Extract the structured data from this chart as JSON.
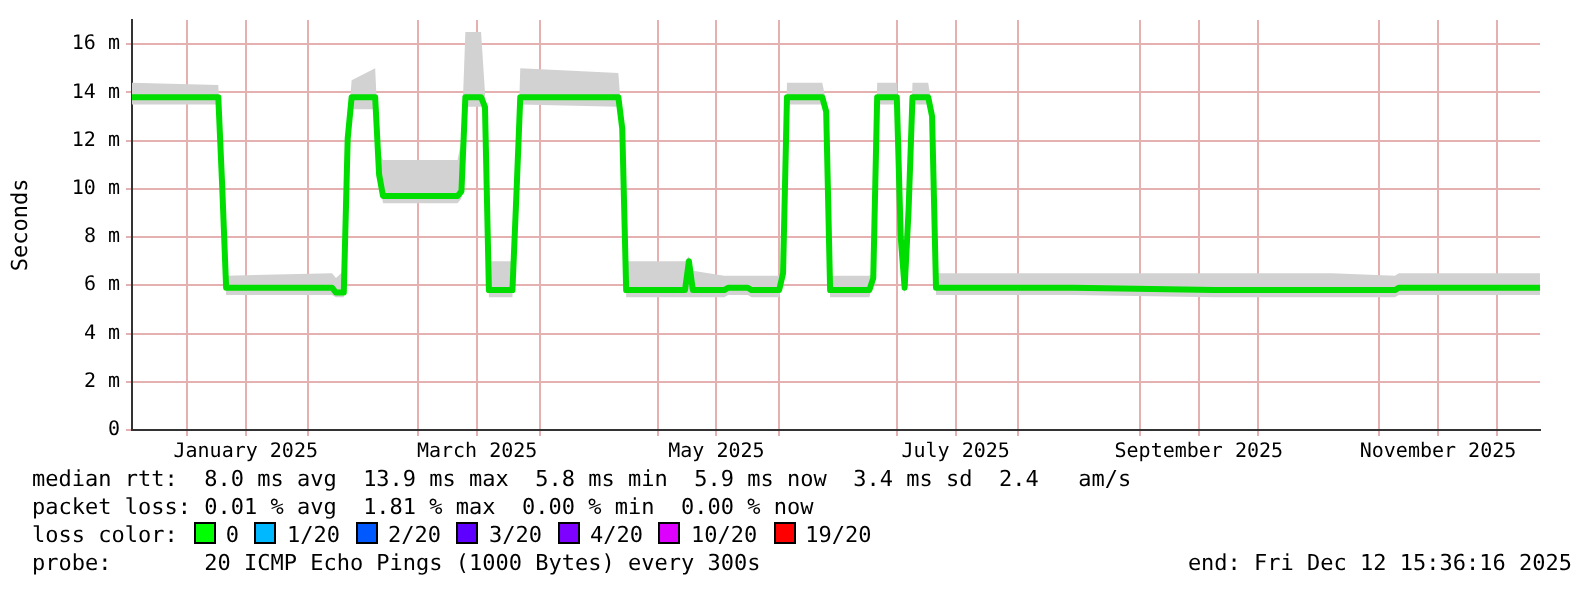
{
  "chart_data": {
    "type": "line",
    "ylabel": "Seconds",
    "legend": false,
    "grid": true,
    "marker": "none",
    "line_style": "solid",
    "xlim": [
      "2024-12-18",
      "2025-12-12"
    ],
    "xticks": [
      {
        "value": "2025-01-01",
        "label": null
      },
      {
        "value": "2025-01-16",
        "label": "January 2025"
      },
      {
        "value": "2025-02-01",
        "label": null
      },
      {
        "value": "2025-03-01",
        "label": null
      },
      {
        "value": "2025-03-16",
        "label": "March 2025"
      },
      {
        "value": "2025-04-01",
        "label": null
      },
      {
        "value": "2025-05-01",
        "label": null
      },
      {
        "value": "2025-05-16",
        "label": "May 2025"
      },
      {
        "value": "2025-06-01",
        "label": null
      },
      {
        "value": "2025-07-01",
        "label": null
      },
      {
        "value": "2025-07-16",
        "label": "July 2025"
      },
      {
        "value": "2025-08-01",
        "label": null
      },
      {
        "value": "2025-09-01",
        "label": null
      },
      {
        "value": "2025-09-16",
        "label": "September 2025"
      },
      {
        "value": "2025-10-01",
        "label": null
      },
      {
        "value": "2025-11-01",
        "label": null
      },
      {
        "value": "2025-11-16",
        "label": "November 2025"
      },
      {
        "value": "2025-12-01",
        "label": null
      }
    ],
    "ylim": [
      0,
      17
    ],
    "yticks": [
      0,
      {
        "value": 2,
        "label": "2 m"
      },
      {
        "value": 4,
        "label": "4 m"
      },
      {
        "value": 6,
        "label": "6 m"
      },
      {
        "value": 8,
        "label": "8 m"
      },
      {
        "value": 10,
        "label": "10 m"
      },
      {
        "value": 12,
        "label": "12 m"
      },
      {
        "value": 14,
        "label": "14 m"
      },
      {
        "value": 16,
        "label": "16 m"
      }
    ],
    "x": [
      "2024-12-18",
      "2025-01-09",
      "2025-01-10",
      "2025-01-11",
      "2025-02-07",
      "2025-02-08",
      "2025-02-10",
      "2025-02-11",
      "2025-02-12",
      "2025-02-18",
      "2025-02-19",
      "2025-02-20",
      "2025-03-11",
      "2025-03-12",
      "2025-03-13",
      "2025-03-17",
      "2025-03-18",
      "2025-03-19",
      "2025-03-25",
      "2025-03-26",
      "2025-03-27",
      "2025-04-21",
      "2025-04-22",
      "2025-04-23",
      "2025-05-08",
      "2025-05-09",
      "2025-05-10",
      "2025-05-18",
      "2025-05-19",
      "2025-05-24",
      "2025-05-25",
      "2025-06-01",
      "2025-06-02",
      "2025-06-03",
      "2025-06-12",
      "2025-06-13",
      "2025-06-14",
      "2025-06-24",
      "2025-06-25",
      "2025-06-26",
      "2025-07-01",
      "2025-07-02",
      "2025-07-03",
      "2025-07-04",
      "2025-07-05",
      "2025-07-09",
      "2025-07-10",
      "2025-07-11",
      "2025-08-15",
      "2025-09-20",
      "2025-10-20",
      "2025-11-05",
      "2025-11-06",
      "2025-12-12"
    ],
    "series": [
      {
        "color": "#00dd00",
        "values": [
          13.8,
          13.8,
          10.1,
          5.9,
          5.9,
          5.7,
          5.7,
          12.1,
          13.8,
          13.8,
          10.6,
          9.7,
          9.7,
          9.9,
          13.8,
          13.8,
          13.4,
          5.8,
          5.8,
          9.7,
          13.8,
          13.8,
          12.5,
          5.8,
          5.8,
          7.0,
          5.8,
          5.8,
          5.9,
          5.9,
          5.8,
          5.8,
          6.5,
          13.8,
          13.8,
          13.2,
          5.8,
          5.8,
          6.3,
          13.8,
          13.8,
          8.0,
          5.9,
          9.1,
          13.8,
          13.8,
          13.0,
          5.9,
          5.9,
          5.8,
          5.8,
          5.8,
          5.9,
          5.9
        ],
        "lower": [
          13.5,
          13.5,
          10.0,
          5.6,
          5.6,
          5.5,
          5.5,
          11.8,
          13.3,
          13.3,
          10.4,
          9.4,
          9.4,
          9.6,
          13.4,
          13.4,
          13.0,
          5.5,
          5.5,
          9.5,
          13.5,
          13.4,
          12.2,
          5.5,
          5.5,
          5.5,
          5.5,
          5.5,
          5.6,
          5.6,
          5.5,
          5.5,
          6.2,
          13.5,
          13.5,
          12.9,
          5.5,
          5.5,
          6.1,
          13.5,
          13.5,
          7.8,
          5.6,
          8.9,
          13.5,
          13.5,
          12.7,
          5.6,
          5.6,
          5.5,
          5.5,
          5.5,
          5.6,
          5.6
        ],
        "upper": [
          14.4,
          14.3,
          10.3,
          6.4,
          6.5,
          6.3,
          6.6,
          12.3,
          14.5,
          15.0,
          11.5,
          11.2,
          11.2,
          12.0,
          16.5,
          16.5,
          14.0,
          7.0,
          7.0,
          9.9,
          15.0,
          14.8,
          12.7,
          7.0,
          7.0,
          7.2,
          6.6,
          6.4,
          6.4,
          6.4,
          6.4,
          6.4,
          6.7,
          14.4,
          14.4,
          13.6,
          6.4,
          6.4,
          6.5,
          14.4,
          14.4,
          8.2,
          6.4,
          9.3,
          14.4,
          14.4,
          13.4,
          6.5,
          6.5,
          6.5,
          6.5,
          6.4,
          6.5,
          6.5
        ]
      }
    ],
    "annotations": [
      "median rtt:  8.0 ms avg  13.9 ms max  5.8 ms min  5.9 ms now  3.4 ms sd  2.4   am/s",
      "packet loss: 0.01 % avg  1.81 % max  0.00 % min  0.00 % now",
      "loss color:",
      "0",
      "1/20",
      "2/20",
      "3/20",
      "4/20",
      "10/20",
      "19/20",
      "probe:       20 ICMP Echo Pings (1000 Bytes) every 300s",
      "end: Fri Dec 12 15:36:16 2025"
    ]
  }
}
